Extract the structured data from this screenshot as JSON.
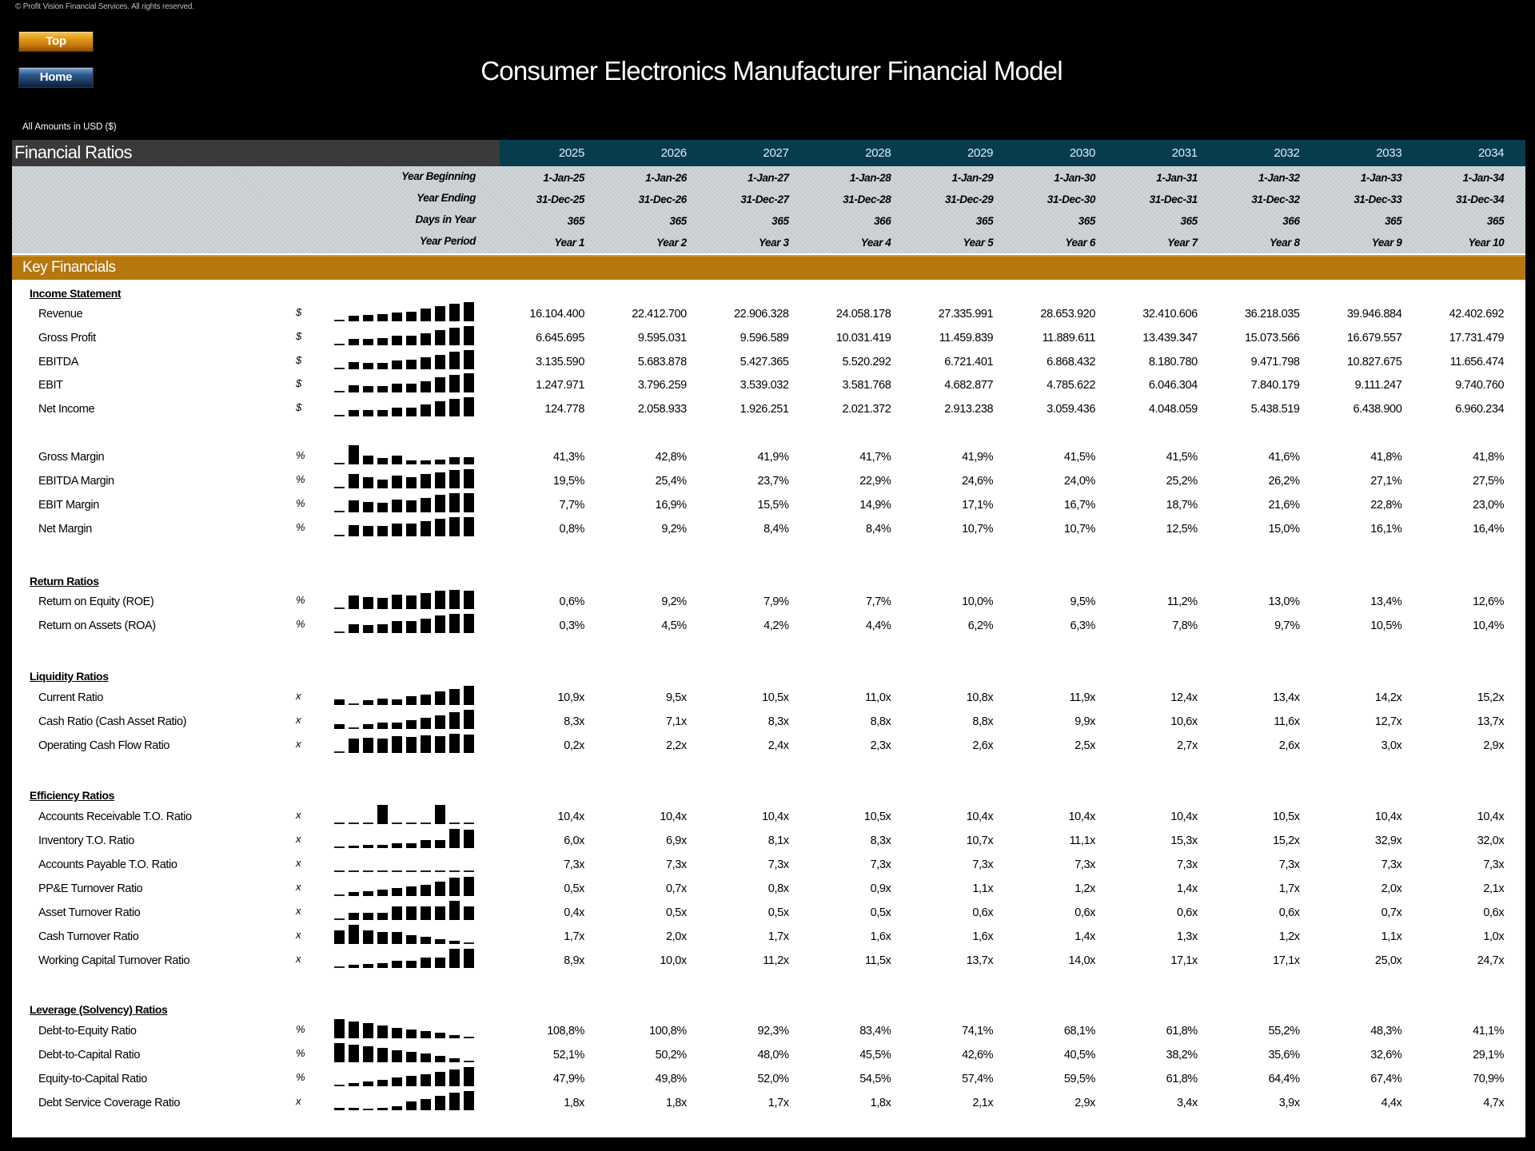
{
  "copyright": "© Profit Vision Financial Services. All rights reserved.",
  "nav": {
    "top_label": "Top",
    "home_label": "Home"
  },
  "title": "Consumer Electronics Manufacturer Financial Model",
  "amounts_note": "All Amounts in  USD ($)",
  "sheet_title": "Financial Ratios",
  "years": [
    "2025",
    "2026",
    "2027",
    "2028",
    "2029",
    "2030",
    "2031",
    "2032",
    "2033",
    "2034"
  ],
  "meta": {
    "labels": [
      "Year Beginning",
      "Year Ending",
      "Days in Year",
      "Year Period"
    ],
    "year_beginning": [
      "1-Jan-25",
      "1-Jan-26",
      "1-Jan-27",
      "1-Jan-28",
      "1-Jan-29",
      "1-Jan-30",
      "1-Jan-31",
      "1-Jan-32",
      "1-Jan-33",
      "1-Jan-34"
    ],
    "year_ending": [
      "31-Dec-25",
      "31-Dec-26",
      "31-Dec-27",
      "31-Dec-28",
      "31-Dec-29",
      "31-Dec-30",
      "31-Dec-31",
      "31-Dec-32",
      "31-Dec-33",
      "31-Dec-34"
    ],
    "days_in_year": [
      "365",
      "365",
      "365",
      "366",
      "365",
      "365",
      "365",
      "366",
      "365",
      "365"
    ],
    "year_period": [
      "Year 1",
      "Year 2",
      "Year 3",
      "Year 4",
      "Year 5",
      "Year 6",
      "Year 7",
      "Year 8",
      "Year 9",
      "Year 10"
    ]
  },
  "section_title": "Key Financials",
  "groups": [
    {
      "title": "Income Statement",
      "rows": [
        {
          "label": "Revenue",
          "unit": "$",
          "values": [
            "16.104.400",
            "22.412.700",
            "22.906.328",
            "24.058.178",
            "27.335.991",
            "28.653.920",
            "32.410.606",
            "36.218.035",
            "39.946.884",
            "42.402.692"
          ]
        },
        {
          "label": "Gross Profit",
          "unit": "$",
          "values": [
            "6.645.695",
            "9.595.031",
            "9.596.589",
            "10.031.419",
            "11.459.839",
            "11.889.611",
            "13.439.347",
            "15.073.566",
            "16.679.557",
            "17.731.479"
          ]
        },
        {
          "label": "EBITDA",
          "unit": "$",
          "values": [
            "3.135.590",
            "5.683.878",
            "5.427.365",
            "5.520.292",
            "6.721.401",
            "6.868.432",
            "8.180.780",
            "9.471.798",
            "10.827.675",
            "11.656.474"
          ]
        },
        {
          "label": "EBIT",
          "unit": "$",
          "values": [
            "1.247.971",
            "3.796.259",
            "3.539.032",
            "3.581.768",
            "4.682.877",
            "4.785.622",
            "6.046.304",
            "7.840.179",
            "9.111.247",
            "9.740.760"
          ]
        },
        {
          "label": "Net Income",
          "unit": "$",
          "values": [
            "124.778",
            "2.058.933",
            "1.926.251",
            "2.021.372",
            "2.913.238",
            "3.059.436",
            "4.048.059",
            "5.438.519",
            "6.438.900",
            "6.960.234"
          ]
        },
        {
          "label": "Gross Margin",
          "unit": "%",
          "values": [
            "41,3%",
            "42,8%",
            "41,9%",
            "41,7%",
            "41,9%",
            "41,5%",
            "41,5%",
            "41,6%",
            "41,8%",
            "41,8%"
          ]
        },
        {
          "label": "EBITDA Margin",
          "unit": "%",
          "values": [
            "19,5%",
            "25,4%",
            "23,7%",
            "22,9%",
            "24,6%",
            "24,0%",
            "25,2%",
            "26,2%",
            "27,1%",
            "27,5%"
          ]
        },
        {
          "label": "EBIT Margin",
          "unit": "%",
          "values": [
            "7,7%",
            "16,9%",
            "15,5%",
            "14,9%",
            "17,1%",
            "16,7%",
            "18,7%",
            "21,6%",
            "22,8%",
            "23,0%"
          ]
        },
        {
          "label": "Net Margin",
          "unit": "%",
          "values": [
            "0,8%",
            "9,2%",
            "8,4%",
            "8,4%",
            "10,7%",
            "10,7%",
            "12,5%",
            "15,0%",
            "16,1%",
            "16,4%"
          ]
        }
      ]
    },
    {
      "title": "Return Ratios",
      "rows": [
        {
          "label": "Return on Equity (ROE)",
          "unit": "%",
          "values": [
            "0,6%",
            "9,2%",
            "7,9%",
            "7,7%",
            "10,0%",
            "9,5%",
            "11,2%",
            "13,0%",
            "13,4%",
            "12,6%"
          ]
        },
        {
          "label": "Return on Assets (ROA)",
          "unit": "%",
          "values": [
            "0,3%",
            "4,5%",
            "4,2%",
            "4,4%",
            "6,2%",
            "6,3%",
            "7,8%",
            "9,7%",
            "10,5%",
            "10,4%"
          ]
        }
      ]
    },
    {
      "title": "Liquidity Ratios",
      "rows": [
        {
          "label": "Current Ratio",
          "unit": "x",
          "values": [
            "10,9x",
            "9,5x",
            "10,5x",
            "11,0x",
            "10,8x",
            "11,9x",
            "12,4x",
            "13,4x",
            "14,2x",
            "15,2x"
          ]
        },
        {
          "label": "Cash Ratio (Cash Asset Ratio)",
          "unit": "x",
          "values": [
            "8,3x",
            "7,1x",
            "8,3x",
            "8,8x",
            "8,8x",
            "9,9x",
            "10,6x",
            "11,6x",
            "12,7x",
            "13,7x"
          ]
        },
        {
          "label": "Operating Cash Flow Ratio",
          "unit": "x",
          "values": [
            "0,2x",
            "2,2x",
            "2,4x",
            "2,3x",
            "2,6x",
            "2,5x",
            "2,7x",
            "2,6x",
            "3,0x",
            "2,9x"
          ]
        }
      ]
    },
    {
      "title": "Efficiency Ratios",
      "rows": [
        {
          "label": "Accounts Receivable T.O. Ratio",
          "unit": "x",
          "values": [
            "10,4x",
            "10,4x",
            "10,4x",
            "10,5x",
            "10,4x",
            "10,4x",
            "10,4x",
            "10,5x",
            "10,4x",
            "10,4x"
          ]
        },
        {
          "label": "Inventory T.O. Ratio",
          "unit": "x",
          "values": [
            "6,0x",
            "6,9x",
            "8,1x",
            "8,3x",
            "10,7x",
            "11,1x",
            "15,3x",
            "15,2x",
            "32,9x",
            "32,0x"
          ]
        },
        {
          "label": "Accounts Payable T.O. Ratio",
          "unit": "x",
          "values": [
            "7,3x",
            "7,3x",
            "7,3x",
            "7,3x",
            "7,3x",
            "7,3x",
            "7,3x",
            "7,3x",
            "7,3x",
            "7,3x"
          ]
        },
        {
          "label": "PP&E Turnover Ratio",
          "unit": "x",
          "values": [
            "0,5x",
            "0,7x",
            "0,8x",
            "0,9x",
            "1,1x",
            "1,2x",
            "1,4x",
            "1,7x",
            "2,0x",
            "2,1x"
          ]
        },
        {
          "label": "Asset Turnover Ratio",
          "unit": "x",
          "values": [
            "0,4x",
            "0,5x",
            "0,5x",
            "0,5x",
            "0,6x",
            "0,6x",
            "0,6x",
            "0,6x",
            "0,7x",
            "0,6x"
          ]
        },
        {
          "label": "Cash Turnover Ratio",
          "unit": "x",
          "values": [
            "1,7x",
            "2,0x",
            "1,7x",
            "1,6x",
            "1,6x",
            "1,4x",
            "1,3x",
            "1,2x",
            "1,1x",
            "1,0x"
          ]
        },
        {
          "label": "Working Capital Turnover Ratio",
          "unit": "x",
          "values": [
            "8,9x",
            "10,0x",
            "11,2x",
            "11,5x",
            "13,7x",
            "14,0x",
            "17,1x",
            "17,1x",
            "25,0x",
            "24,7x"
          ]
        }
      ]
    },
    {
      "title": "Leverage (Solvency) Ratios",
      "rows": [
        {
          "label": "Debt-to-Equity Ratio",
          "unit": "%",
          "values": [
            "108,8%",
            "100,8%",
            "92,3%",
            "83,4%",
            "74,1%",
            "68,1%",
            "61,8%",
            "55,2%",
            "48,3%",
            "41,1%"
          ]
        },
        {
          "label": "Debt-to-Capital Ratio",
          "unit": "%",
          "values": [
            "52,1%",
            "50,2%",
            "48,0%",
            "45,5%",
            "42,6%",
            "40,5%",
            "38,2%",
            "35,6%",
            "32,6%",
            "29,1%"
          ]
        },
        {
          "label": "Equity-to-Capital Ratio",
          "unit": "%",
          "values": [
            "47,9%",
            "49,8%",
            "52,0%",
            "54,5%",
            "57,4%",
            "59,5%",
            "61,8%",
            "64,4%",
            "67,4%",
            "70,9%"
          ]
        },
        {
          "label": "Debt Service Coverage Ratio",
          "unit": "x",
          "values": [
            "1,8x",
            "1,8x",
            "1,7x",
            "1,8x",
            "2,1x",
            "2,9x",
            "3,4x",
            "3,9x",
            "4,4x",
            "4,7x"
          ]
        }
      ]
    }
  ]
}
